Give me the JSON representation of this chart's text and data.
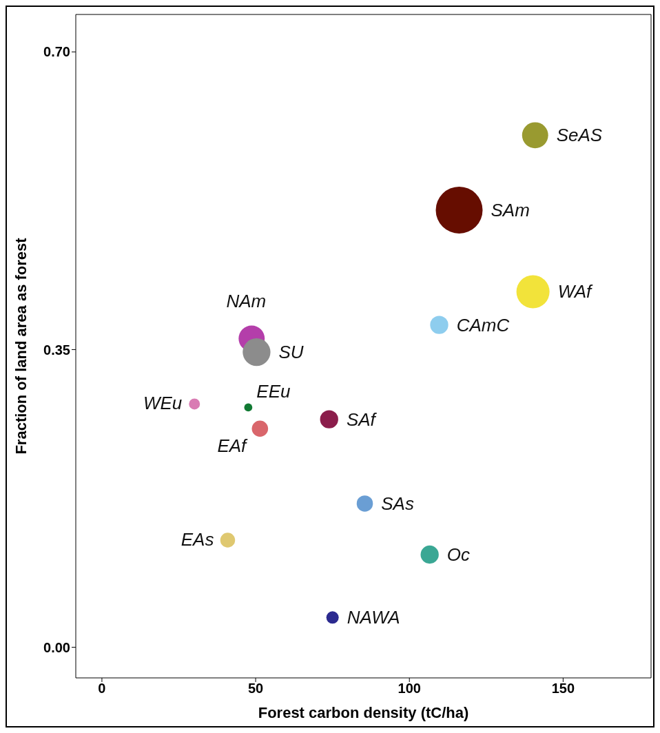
{
  "chart_data": {
    "type": "bubble",
    "xlabel": "Forest carbon density (tC/ha)",
    "ylabel": "Fraction of land area as forest",
    "xlim": [
      -8.5,
      178.6
    ],
    "xticks": [
      0,
      50,
      100,
      150
    ],
    "ylim": [
      -0.036,
      0.744
    ],
    "yticks": [
      {
        "value": 0,
        "label": "0.00"
      },
      {
        "value": 0.35,
        "label": "0.35"
      },
      {
        "value": 0.7,
        "label": "0.70"
      }
    ],
    "grid": false,
    "legend": false,
    "marker": "circle",
    "series": [
      {
        "name": "SeAS",
        "color": "#999a30",
        "x": [
          140.9
        ],
        "values": [
          0.602
        ],
        "sizes": [
          0.31
        ]
      },
      {
        "name": "SAm",
        "color": "#660d00",
        "x": [
          116.2
        ],
        "values": [
          0.514
        ],
        "sizes": [
          1
        ]
      },
      {
        "name": "WAf",
        "color": "#f2e33a",
        "x": [
          140.2
        ],
        "values": [
          0.418
        ],
        "sizes": [
          0.5
        ]
      },
      {
        "name": "CAmC",
        "color": "#8ecdee",
        "x": [
          109.7
        ],
        "values": [
          0.379
        ],
        "sizes": [
          0.15
        ]
      },
      {
        "name": "NAm",
        "color": "#b43eaa",
        "x": [
          48.7
        ],
        "values": [
          0.363
        ],
        "sizes": [
          0.31
        ]
      },
      {
        "name": "SU",
        "color": "#8c8c8c",
        "x": [
          50.3
        ],
        "values": [
          0.347
        ],
        "sizes": [
          0.35
        ]
      },
      {
        "name": "WEu",
        "color": "#d97bb3",
        "x": [
          30.1
        ],
        "values": [
          0.286
        ],
        "sizes": [
          0.055
        ]
      },
      {
        "name": "EEu",
        "color": "#117a33",
        "x": [
          47.6
        ],
        "values": [
          0.282
        ],
        "sizes": [
          0.03
        ]
      },
      {
        "name": "SAf",
        "color": "#8b1d4b",
        "x": [
          73.9
        ],
        "values": [
          0.268
        ],
        "sizes": [
          0.15
        ]
      },
      {
        "name": "EAf",
        "color": "#d9666b",
        "x": [
          51.4
        ],
        "values": [
          0.257
        ],
        "sizes": [
          0.12
        ]
      },
      {
        "name": "SAs",
        "color": "#6a9ed4",
        "x": [
          85.5
        ],
        "values": [
          0.169
        ],
        "sizes": [
          0.12
        ]
      },
      {
        "name": "EAs",
        "color": "#dfc870",
        "x": [
          40.9
        ],
        "values": [
          0.126
        ],
        "sizes": [
          0.1
        ]
      },
      {
        "name": "Oc",
        "color": "#3aa794",
        "x": [
          106.6
        ],
        "values": [
          0.109
        ],
        "sizes": [
          0.15
        ]
      },
      {
        "name": "NAWA",
        "color": "#2b2a8f",
        "x": [
          75.0
        ],
        "values": [
          0.035
        ],
        "sizes": [
          0.07
        ]
      }
    ]
  }
}
